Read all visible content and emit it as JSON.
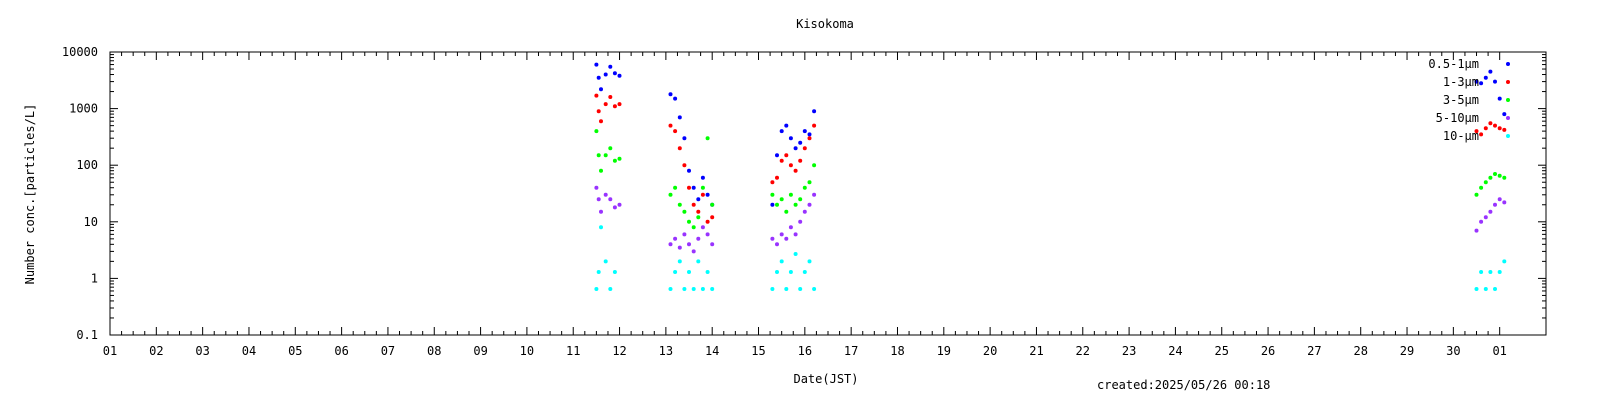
{
  "chart_data": {
    "type": "scatter",
    "title": "Kisokoma",
    "xlabel": "Date(JST)",
    "ylabel": "Number conc.[particles/L]",
    "yscale": "log",
    "ylim": [
      0.1,
      10000
    ],
    "xlim": [
      1,
      32
    ],
    "yticks": [
      "0.1",
      "1",
      "10",
      "100",
      "1000",
      "10000"
    ],
    "xticks": [
      "01",
      "02",
      "03",
      "04",
      "05",
      "06",
      "07",
      "08",
      "09",
      "10",
      "11",
      "12",
      "13",
      "14",
      "15",
      "16",
      "17",
      "18",
      "19",
      "20",
      "21",
      "22",
      "23",
      "24",
      "25",
      "26",
      "27",
      "28",
      "29",
      "30",
      "01"
    ],
    "legend_position": "top-right",
    "footer": "created:2025/05/26 00:18",
    "series": [
      {
        "name": "0.5-1μm",
        "color": "#0000ff",
        "points": [
          [
            11.5,
            6000
          ],
          [
            11.55,
            3500
          ],
          [
            11.6,
            2200
          ],
          [
            11.7,
            4000
          ],
          [
            11.8,
            5500
          ],
          [
            11.9,
            4200
          ],
          [
            12.0,
            3800
          ],
          [
            13.1,
            1800
          ],
          [
            13.2,
            1500
          ],
          [
            13.3,
            700
          ],
          [
            13.4,
            300
          ],
          [
            13.5,
            80
          ],
          [
            13.6,
            40
          ],
          [
            13.7,
            25
          ],
          [
            13.8,
            60
          ],
          [
            13.9,
            30
          ],
          [
            14.0,
            20
          ],
          [
            15.3,
            20
          ],
          [
            15.4,
            150
          ],
          [
            15.5,
            400
          ],
          [
            15.6,
            500
          ],
          [
            15.7,
            300
          ],
          [
            15.8,
            200
          ],
          [
            15.9,
            250
          ],
          [
            16.0,
            400
          ],
          [
            16.1,
            350
          ],
          [
            16.2,
            900
          ],
          [
            30.5,
            3000
          ],
          [
            30.6,
            2800
          ],
          [
            30.7,
            3500
          ],
          [
            30.8,
            4500
          ],
          [
            30.9,
            3000
          ],
          [
            31.0,
            1500
          ],
          [
            31.1,
            800
          ]
        ]
      },
      {
        "name": "1-3μm",
        "color": "#ff0000",
        "points": [
          [
            11.5,
            1700
          ],
          [
            11.55,
            900
          ],
          [
            11.6,
            600
          ],
          [
            11.7,
            1200
          ],
          [
            11.8,
            1600
          ],
          [
            11.9,
            1100
          ],
          [
            12.0,
            1200
          ],
          [
            13.1,
            500
          ],
          [
            13.2,
            400
          ],
          [
            13.3,
            200
          ],
          [
            13.4,
            100
          ],
          [
            13.5,
            40
          ],
          [
            13.6,
            20
          ],
          [
            13.7,
            15
          ],
          [
            13.8,
            30
          ],
          [
            13.9,
            10
          ],
          [
            14.0,
            12
          ],
          [
            15.3,
            50
          ],
          [
            15.4,
            60
          ],
          [
            15.5,
            120
          ],
          [
            15.6,
            150
          ],
          [
            15.7,
            100
          ],
          [
            15.8,
            80
          ],
          [
            15.9,
            120
          ],
          [
            16.0,
            200
          ],
          [
            16.1,
            300
          ],
          [
            16.2,
            500
          ],
          [
            30.5,
            400
          ],
          [
            30.6,
            350
          ],
          [
            30.7,
            450
          ],
          [
            30.8,
            550
          ],
          [
            30.9,
            500
          ],
          [
            31.0,
            450
          ],
          [
            31.1,
            420
          ]
        ]
      },
      {
        "name": "3-5μm",
        "color": "#00ff00",
        "points": [
          [
            11.5,
            400
          ],
          [
            11.55,
            150
          ],
          [
            11.6,
            80
          ],
          [
            11.7,
            150
          ],
          [
            11.8,
            200
          ],
          [
            11.9,
            120
          ],
          [
            12.0,
            130
          ],
          [
            13.1,
            30
          ],
          [
            13.2,
            40
          ],
          [
            13.3,
            20
          ],
          [
            13.4,
            15
          ],
          [
            13.5,
            10
          ],
          [
            13.6,
            8
          ],
          [
            13.7,
            12
          ],
          [
            13.8,
            40
          ],
          [
            13.9,
            300
          ],
          [
            14.0,
            20
          ],
          [
            15.3,
            30
          ],
          [
            15.4,
            20
          ],
          [
            15.5,
            25
          ],
          [
            15.6,
            15
          ],
          [
            15.7,
            30
          ],
          [
            15.8,
            20
          ],
          [
            15.9,
            25
          ],
          [
            16.0,
            40
          ],
          [
            16.1,
            50
          ],
          [
            16.2,
            100
          ],
          [
            30.5,
            30
          ],
          [
            30.6,
            40
          ],
          [
            30.7,
            50
          ],
          [
            30.8,
            60
          ],
          [
            30.9,
            70
          ],
          [
            31.0,
            65
          ],
          [
            31.1,
            60
          ]
        ]
      },
      {
        "name": "5-10μm",
        "color": "#9933ff",
        "points": [
          [
            11.5,
            40
          ],
          [
            11.55,
            25
          ],
          [
            11.6,
            15
          ],
          [
            11.7,
            30
          ],
          [
            11.8,
            25
          ],
          [
            11.9,
            18
          ],
          [
            12.0,
            20
          ],
          [
            13.1,
            4
          ],
          [
            13.2,
            5
          ],
          [
            13.3,
            3.5
          ],
          [
            13.4,
            6
          ],
          [
            13.5,
            4
          ],
          [
            13.6,
            3
          ],
          [
            13.7,
            5
          ],
          [
            13.8,
            8
          ],
          [
            13.9,
            6
          ],
          [
            14.0,
            4
          ],
          [
            15.3,
            5
          ],
          [
            15.4,
            4
          ],
          [
            15.5,
            6
          ],
          [
            15.6,
            5
          ],
          [
            15.7,
            8
          ],
          [
            15.8,
            6
          ],
          [
            15.9,
            10
          ],
          [
            16.0,
            15
          ],
          [
            16.1,
            20
          ],
          [
            16.2,
            30
          ],
          [
            30.5,
            7
          ],
          [
            30.6,
            10
          ],
          [
            30.7,
            12
          ],
          [
            30.8,
            15
          ],
          [
            30.9,
            20
          ],
          [
            31.0,
            25
          ],
          [
            31.1,
            22
          ]
        ]
      },
      {
        "name": "10-μm",
        "color": "#00ffff",
        "points": [
          [
            11.5,
            0.65
          ],
          [
            11.55,
            1.3
          ],
          [
            11.6,
            8
          ],
          [
            11.7,
            2
          ],
          [
            11.8,
            0.65
          ],
          [
            11.9,
            1.3
          ],
          [
            13.1,
            0.65
          ],
          [
            13.2,
            1.3
          ],
          [
            13.3,
            2
          ],
          [
            13.4,
            0.65
          ],
          [
            13.5,
            1.3
          ],
          [
            13.6,
            0.65
          ],
          [
            13.7,
            2
          ],
          [
            13.8,
            0.65
          ],
          [
            13.9,
            1.3
          ],
          [
            14.0,
            0.65
          ],
          [
            15.3,
            0.65
          ],
          [
            15.4,
            1.3
          ],
          [
            15.5,
            2
          ],
          [
            15.6,
            0.65
          ],
          [
            15.7,
            1.3
          ],
          [
            15.8,
            2.7
          ],
          [
            15.9,
            0.65
          ],
          [
            16.0,
            1.3
          ],
          [
            16.1,
            2
          ],
          [
            16.2,
            0.65
          ],
          [
            30.5,
            0.65
          ],
          [
            30.6,
            1.3
          ],
          [
            30.7,
            0.65
          ],
          [
            30.8,
            1.3
          ],
          [
            30.9,
            0.65
          ],
          [
            31.0,
            1.3
          ],
          [
            31.1,
            2
          ]
        ]
      }
    ]
  }
}
